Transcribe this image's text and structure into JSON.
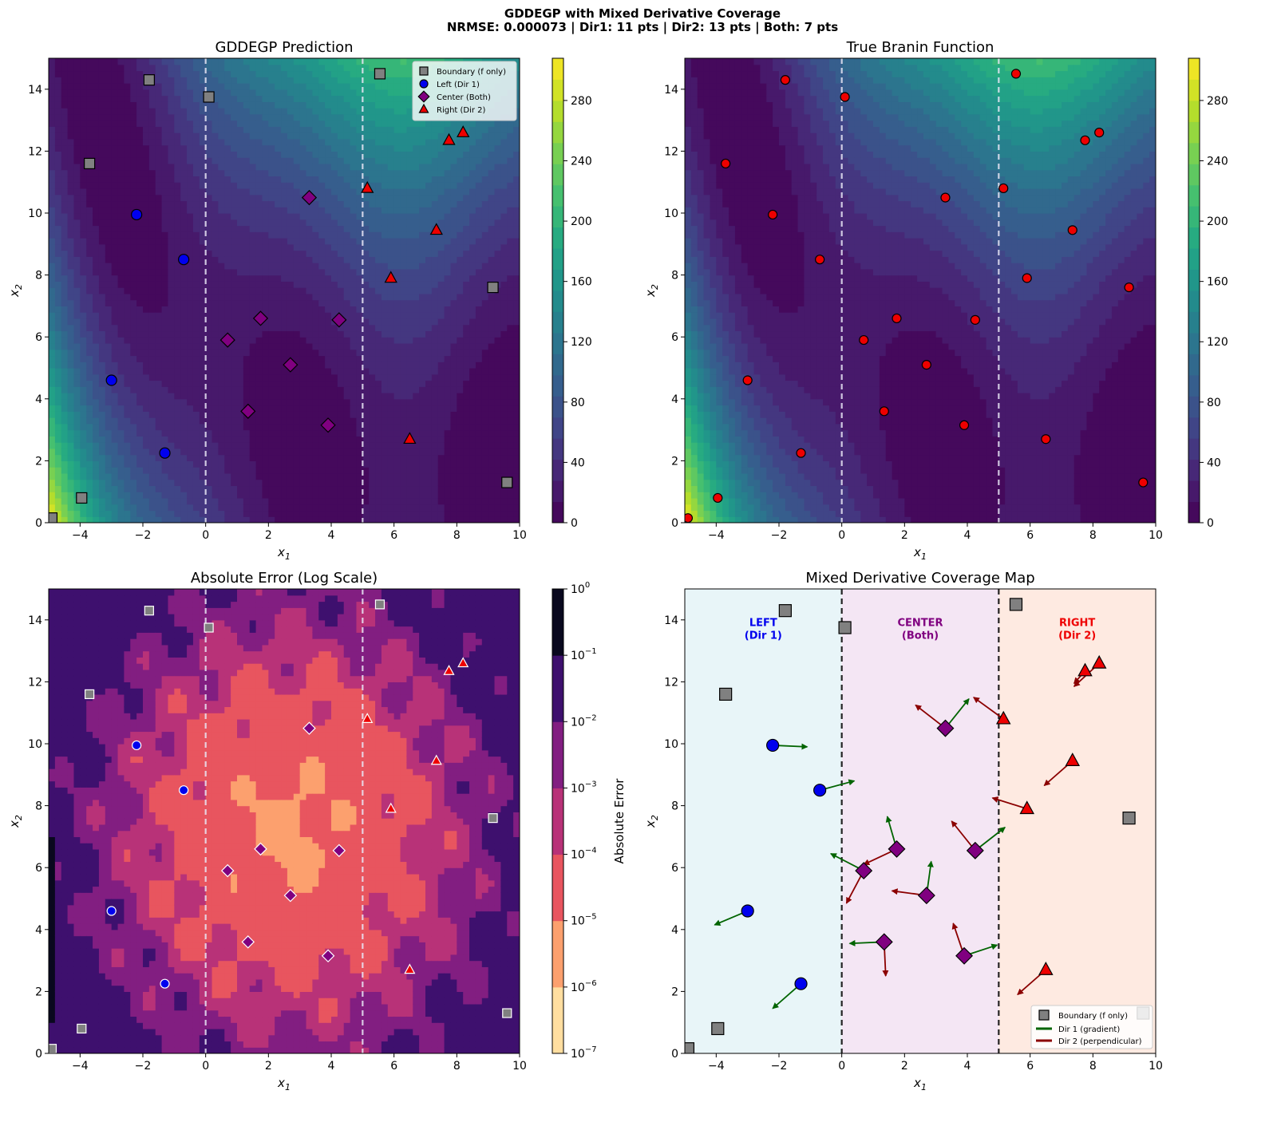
{
  "figure": {
    "title_line1": "GDDEGP with Mixed Derivative Coverage",
    "title_line2": "NRMSE: 0.000073 | Dir1: 11 pts | Dir2: 13 pts | Both: 7 pts"
  },
  "colors": {
    "boundary": "#808080",
    "left": "#0000ee",
    "center": "#800080",
    "right": "#ee0000",
    "dir1_arrow": "#006400",
    "dir2_arrow": "#8b0000",
    "left_region": "#e0f2f6",
    "center_region": "#f0ddf0",
    "right_region": "#fde3d7"
  },
  "chart_data": [
    {
      "type": "heatmap",
      "title": "GDDEGP Prediction",
      "xlabel": "x1",
      "ylabel": "x2",
      "xlim": [
        -5,
        10
      ],
      "ylim": [
        0,
        15
      ],
      "xticks": [
        "−4",
        "−2",
        "0",
        "2",
        "4",
        "6",
        "8",
        "10"
      ],
      "yticks": [
        "0",
        "2",
        "4",
        "6",
        "8",
        "10",
        "12",
        "14"
      ],
      "colormap": "viridis",
      "colorbar_range": [
        0,
        308
      ],
      "colorbar_ticks": [
        "0",
        "40",
        "80",
        "120",
        "160",
        "200",
        "240",
        "280"
      ],
      "region_boundaries_x": [
        0,
        5
      ],
      "legend": [
        "Boundary (f only)",
        "Left (Dir 1)",
        "Center (Both)",
        "Right (Dir 2)"
      ],
      "legend_position": "top-right"
    },
    {
      "type": "heatmap",
      "title": "True Branin Function",
      "xlabel": "x1",
      "ylabel": "x2",
      "xlim": [
        -5,
        10
      ],
      "ylim": [
        0,
        15
      ],
      "xticks": [
        "−4",
        "−2",
        "0",
        "2",
        "4",
        "6",
        "8",
        "10"
      ],
      "yticks": [
        "0",
        "2",
        "4",
        "6",
        "8",
        "10",
        "12",
        "14"
      ],
      "colormap": "viridis",
      "colorbar_range": [
        0,
        308
      ],
      "colorbar_ticks": [
        "0",
        "40",
        "80",
        "120",
        "160",
        "200",
        "240",
        "280"
      ],
      "region_boundaries_x": [
        0,
        5
      ],
      "points_style": "all training points in red circles"
    },
    {
      "type": "heatmap",
      "title": "Absolute Error (Log Scale)",
      "xlabel": "x1",
      "ylabel": "x2",
      "xlim": [
        -5,
        10
      ],
      "ylim": [
        0,
        15
      ],
      "xticks": [
        "−4",
        "−2",
        "0",
        "2",
        "4",
        "6",
        "8",
        "10"
      ],
      "yticks": [
        "0",
        "2",
        "4",
        "6",
        "8",
        "10",
        "12",
        "14"
      ],
      "colormap": "magma_r",
      "colorbar_label": "Absolute Error",
      "colorbar_log_range": [
        -7,
        0
      ],
      "colorbar_ticks": [
        "−7",
        "−6",
        "−5",
        "−4",
        "−3",
        "−2",
        "−1",
        "0"
      ],
      "region_boundaries_x": [
        0,
        5
      ]
    },
    {
      "type": "scatter",
      "title": "Mixed Derivative Coverage Map",
      "xlabel": "x1",
      "ylabel": "x2",
      "xlim": [
        -5,
        10
      ],
      "ylim": [
        0,
        15
      ],
      "xticks": [
        "−4",
        "−2",
        "0",
        "2",
        "4",
        "6",
        "8",
        "10"
      ],
      "yticks": [
        "0",
        "2",
        "4",
        "6",
        "8",
        "10",
        "12",
        "14"
      ],
      "region_labels": [
        {
          "name": "LEFT",
          "sub": "(Dir 1)",
          "x": -2.5,
          "y": 13.6
        },
        {
          "name": "CENTER",
          "sub": "(Both)",
          "x": 2.5,
          "y": 13.6
        },
        {
          "name": "RIGHT",
          "sub": "(Dir 2)",
          "x": 7.5,
          "y": 13.6
        }
      ],
      "legend": [
        "Boundary (f only)",
        "Dir 1 (gradient)",
        "Dir 2 (perpendicular)"
      ],
      "legend_position": "bottom-right"
    }
  ],
  "points": {
    "boundary": [
      [
        -4.9,
        0.15
      ],
      [
        -3.95,
        0.8
      ],
      [
        -3.7,
        11.6
      ],
      [
        -1.8,
        14.3
      ],
      [
        0.1,
        13.75
      ],
      [
        5.55,
        14.5
      ],
      [
        9.15,
        7.6
      ],
      [
        9.6,
        1.3
      ]
    ],
    "left": [
      [
        -2.2,
        9.95
      ],
      [
        -0.7,
        8.5
      ],
      [
        -3.0,
        4.6
      ],
      [
        -1.3,
        2.25
      ]
    ],
    "center": [
      [
        3.3,
        10.5
      ],
      [
        1.75,
        6.6
      ],
      [
        4.25,
        6.55
      ],
      [
        0.7,
        5.9
      ],
      [
        2.7,
        5.1
      ],
      [
        1.35,
        3.6
      ],
      [
        3.9,
        3.15
      ]
    ],
    "right": [
      [
        7.75,
        12.35
      ],
      [
        8.2,
        12.6
      ],
      [
        5.15,
        10.8
      ],
      [
        7.35,
        9.45
      ],
      [
        5.9,
        7.9
      ],
      [
        6.5,
        2.7
      ]
    ]
  },
  "arrows": {
    "dir1": [
      [
        -2.2,
        9.95,
        1.1,
        -0.05
      ],
      [
        -0.7,
        8.5,
        1.1,
        0.3
      ],
      [
        -3.0,
        4.6,
        -1.05,
        -0.45
      ],
      [
        -1.3,
        2.25,
        -0.9,
        -0.8
      ],
      [
        3.3,
        10.5,
        0.75,
        0.95
      ],
      [
        1.75,
        6.6,
        -0.3,
        1.05
      ],
      [
        4.25,
        6.55,
        0.95,
        0.75
      ],
      [
        0.7,
        5.9,
        -1.05,
        0.55
      ],
      [
        2.7,
        5.1,
        0.15,
        1.1
      ],
      [
        1.35,
        3.6,
        -1.1,
        -0.05
      ],
      [
        3.9,
        3.15,
        1.05,
        0.35
      ]
    ],
    "dir2": [
      [
        3.3,
        10.5,
        -0.95,
        0.75
      ],
      [
        1.75,
        6.6,
        -1.05,
        -0.5
      ],
      [
        4.25,
        6.55,
        -0.75,
        0.95
      ],
      [
        0.7,
        5.9,
        -0.55,
        -1.05
      ],
      [
        2.7,
        5.1,
        -1.1,
        0.15
      ],
      [
        1.35,
        3.6,
        0.05,
        -1.1
      ],
      [
        3.9,
        3.15,
        -0.35,
        1.05
      ],
      [
        7.75,
        12.35,
        -0.35,
        -0.4
      ],
      [
        8.2,
        12.6,
        -0.8,
        -0.75
      ],
      [
        5.15,
        10.8,
        -0.95,
        0.7
      ],
      [
        7.35,
        9.45,
        -0.9,
        -0.8
      ],
      [
        5.9,
        7.9,
        -1.1,
        0.35
      ],
      [
        6.5,
        2.7,
        -0.9,
        -0.8
      ]
    ]
  }
}
